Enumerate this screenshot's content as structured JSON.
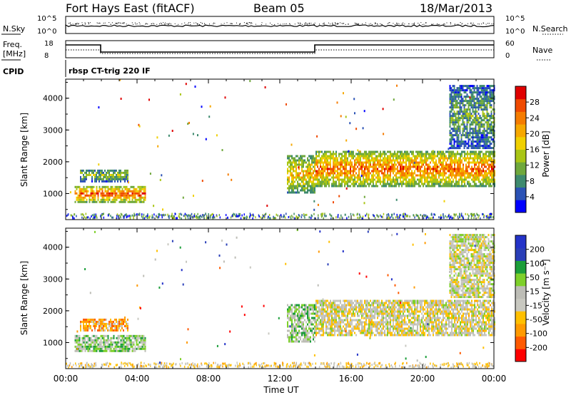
{
  "header": {
    "station": "Fort Hays East (fitACF)",
    "beam": "Beam 05",
    "date": "18/Mar/2013"
  },
  "summary_panels": {
    "nsky_label": "N.Sky",
    "nsky_ticks": [
      "10^5",
      "10^0"
    ],
    "nsearch_label": "N.Search",
    "nsearch_ticks": [
      "10^5",
      "10^0"
    ],
    "freq_label_top": "Freq.",
    "freq_label_bottom": "[MHz]",
    "freq_ticks": [
      "18",
      "8"
    ],
    "nave_label": "Nave",
    "nave_ticks": [
      "60",
      "0"
    ],
    "cpid_label": "CPID",
    "cpid_text": "rbsp CT-trig 220 IF"
  },
  "colors": {
    "power": [
      "#0000ff",
      "#2b52b5",
      "#3e8a6e",
      "#6fa83c",
      "#a9c515",
      "#f0d000",
      "#f6a800",
      "#f57c00",
      "#f04a00",
      "#e00000"
    ],
    "velocity": [
      "#ff0000",
      "#ff5a00",
      "#ff9a00",
      "#ffc000",
      "#c8c8c0",
      "#bdbdb6",
      "#7ed02a",
      "#1c9e3a",
      "#2a3fb8",
      "#2433c8"
    ]
  },
  "chart_data": [
    {
      "type": "heatmap",
      "title": "Power",
      "xlabel": "",
      "ylabel": "Slant Range [km]",
      "x_ticks": [
        "00:00",
        "04:00",
        "08:00",
        "12:00",
        "16:00",
        "20:00",
        "00:00"
      ],
      "x_range_hours": [
        0,
        24
      ],
      "y_ticks": [
        1000,
        2000,
        3000,
        4000
      ],
      "ylim": [
        180,
        4600
      ],
      "colorbar": {
        "label": "Power [dB]",
        "ticks": [
          "28",
          "24",
          "20",
          "16",
          "12",
          "8",
          "4"
        ],
        "range": [
          0,
          32
        ]
      },
      "regions": [
        {
          "t0": 0.5,
          "t1": 4.5,
          "r0": 700,
          "r1": 1200,
          "level": 0.75
        },
        {
          "t0": 0.8,
          "t1": 3.5,
          "r0": 1350,
          "r1": 1750,
          "level": 0.35
        },
        {
          "t0": 12.4,
          "t1": 14,
          "r0": 1000,
          "r1": 2200,
          "level": 0.55
        },
        {
          "t0": 14,
          "t1": 24,
          "r0": 1200,
          "r1": 2300,
          "level": 0.7
        },
        {
          "t0": 21.5,
          "t1": 24,
          "r0": 2400,
          "r1": 4400,
          "level": 0.3
        }
      ]
    },
    {
      "type": "heatmap",
      "title": "Velocity",
      "xlabel": "Time UT",
      "ylabel": "Slant Range [km]",
      "x_ticks": [
        "00:00",
        "04:00",
        "08:00",
        "12:00",
        "16:00",
        "20:00",
        "00:00"
      ],
      "x_range_hours": [
        0,
        24
      ],
      "y_ticks": [
        1000,
        2000,
        3000,
        4000
      ],
      "ylim": [
        180,
        4600
      ],
      "colorbar": {
        "label": "Velocity [m s⁻¹]",
        "ticks": [
          "200",
          "100",
          "50",
          "15",
          "-15",
          "-50",
          "-100",
          "-200"
        ],
        "range": [
          -250,
          250
        ]
      },
      "regions": [
        {
          "t0": 0.5,
          "t1": 4.5,
          "r0": 700,
          "r1": 1200,
          "level": 0.6
        },
        {
          "t0": 0.8,
          "t1": 3.5,
          "r0": 1350,
          "r1": 1750,
          "level": 0.3
        },
        {
          "t0": 12.4,
          "t1": 14,
          "r0": 1000,
          "r1": 2200,
          "level": 0.62
        },
        {
          "t0": 14,
          "t1": 24,
          "r0": 1200,
          "r1": 2300,
          "level": 0.47
        },
        {
          "t0": 21.5,
          "t1": 24,
          "r0": 2400,
          "r1": 4400,
          "level": 0.5
        }
      ]
    }
  ]
}
